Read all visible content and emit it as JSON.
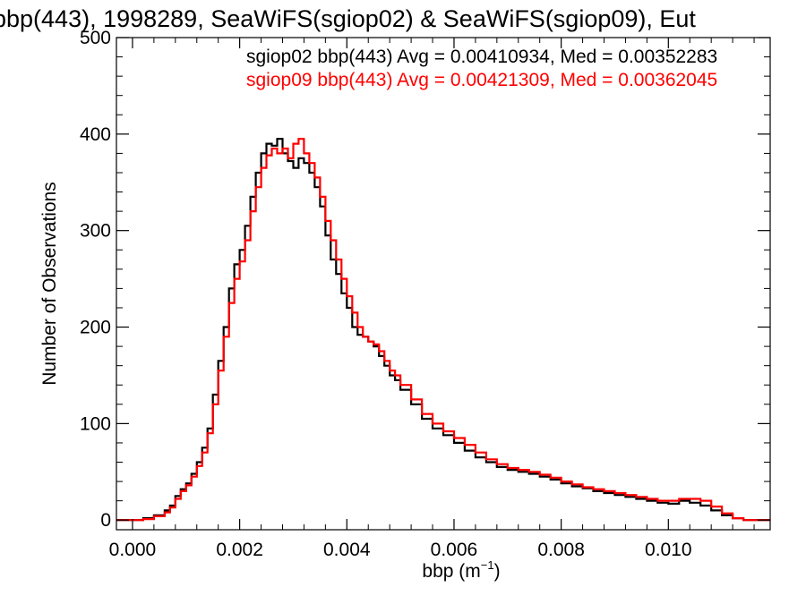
{
  "chart_data": {
    "type": "line",
    "title": "bbp(443), 1998289, SeaWiFS(sgiop02) & SeaWiFS(sgiop09), Eut",
    "xlabel_main": "bbp (m",
    "xlabel_sup": "−1",
    "xlabel_close": ")",
    "ylabel": "Number of Observations",
    "xlim": [
      -0.0003,
      0.0119
    ],
    "ylim": [
      -10,
      500
    ],
    "x_ticks": [
      0.0,
      0.002,
      0.004,
      0.006,
      0.008,
      0.01
    ],
    "x_tick_labels": [
      "0.000",
      "0.002",
      "0.004",
      "0.006",
      "0.008",
      "0.010"
    ],
    "y_ticks": [
      0,
      100,
      200,
      300,
      400,
      500
    ],
    "y_tick_labels": [
      "0",
      "100",
      "200",
      "300",
      "400",
      "500"
    ],
    "grid": false,
    "legend_position": "top-right",
    "series": [
      {
        "name": "sgiop02",
        "color": "#000000",
        "legend_text": "sgiop02 bbp(443) Avg = 0.00410934, Med = 0.00352283",
        "x": [
          -0.0003,
          0.0002,
          0.0004,
          0.0006,
          0.0007,
          0.0008,
          0.0009,
          0.001,
          0.0011,
          0.0012,
          0.0013,
          0.0014,
          0.0015,
          0.0016,
          0.0017,
          0.0018,
          0.0019,
          0.002,
          0.0021,
          0.0022,
          0.0023,
          0.0024,
          0.0025,
          0.0026,
          0.0027,
          0.0028,
          0.0029,
          0.003,
          0.0031,
          0.0032,
          0.0033,
          0.0034,
          0.0035,
          0.0036,
          0.0037,
          0.0038,
          0.0039,
          0.004,
          0.0041,
          0.0042,
          0.0043,
          0.0044,
          0.0045,
          0.0046,
          0.0047,
          0.0048,
          0.0049,
          0.005,
          0.0052,
          0.0054,
          0.0056,
          0.0058,
          0.006,
          0.0062,
          0.0064,
          0.0066,
          0.0068,
          0.007,
          0.0072,
          0.0074,
          0.0076,
          0.0078,
          0.008,
          0.0082,
          0.0084,
          0.0086,
          0.0088,
          0.009,
          0.0092,
          0.0094,
          0.0096,
          0.0098,
          0.01,
          0.0102,
          0.0104,
          0.0106,
          0.0108,
          0.011,
          0.0112,
          0.0114,
          0.0119
        ],
        "y": [
          0,
          2,
          5,
          10,
          15,
          25,
          32,
          38,
          48,
          60,
          75,
          95,
          130,
          165,
          200,
          240,
          265,
          280,
          305,
          335,
          360,
          380,
          390,
          388,
          395,
          380,
          372,
          365,
          375,
          370,
          360,
          345,
          325,
          295,
          270,
          255,
          235,
          220,
          200,
          192,
          190,
          185,
          180,
          170,
          160,
          150,
          145,
          135,
          120,
          105,
          95,
          88,
          80,
          72,
          65,
          60,
          55,
          52,
          50,
          48,
          45,
          42,
          38,
          35,
          33,
          30,
          28,
          26,
          24,
          22,
          20,
          18,
          17,
          20,
          18,
          15,
          10,
          5,
          2,
          0,
          0
        ]
      },
      {
        "name": "sgiop09",
        "color": "#ff0000",
        "legend_text": "sgiop09 bbp(443) Avg = 0.00421309, Med = 0.00362045",
        "x": [
          -0.0003,
          0.0002,
          0.0004,
          0.0006,
          0.0007,
          0.0008,
          0.0009,
          0.001,
          0.0011,
          0.0012,
          0.0013,
          0.0014,
          0.0015,
          0.0016,
          0.0017,
          0.0018,
          0.0019,
          0.002,
          0.0021,
          0.0022,
          0.0023,
          0.0024,
          0.0025,
          0.0026,
          0.0027,
          0.0028,
          0.0029,
          0.003,
          0.0031,
          0.0032,
          0.0033,
          0.0034,
          0.0035,
          0.0036,
          0.0037,
          0.0038,
          0.0039,
          0.004,
          0.0041,
          0.0042,
          0.0043,
          0.0044,
          0.0045,
          0.0046,
          0.0047,
          0.0048,
          0.0049,
          0.005,
          0.0052,
          0.0054,
          0.0056,
          0.0058,
          0.006,
          0.0062,
          0.0064,
          0.0066,
          0.0068,
          0.007,
          0.0072,
          0.0074,
          0.0076,
          0.0078,
          0.008,
          0.0082,
          0.0084,
          0.0086,
          0.0088,
          0.009,
          0.0092,
          0.0094,
          0.0096,
          0.0098,
          0.01,
          0.0102,
          0.0104,
          0.0106,
          0.0108,
          0.011,
          0.0112,
          0.0114,
          0.0119
        ],
        "y": [
          0,
          1,
          4,
          8,
          13,
          22,
          30,
          36,
          45,
          56,
          70,
          90,
          120,
          155,
          190,
          225,
          250,
          268,
          290,
          320,
          345,
          365,
          378,
          385,
          380,
          385,
          375,
          390,
          395,
          380,
          370,
          355,
          335,
          310,
          290,
          270,
          250,
          232,
          215,
          200,
          190,
          185,
          182,
          175,
          165,
          155,
          150,
          140,
          125,
          110,
          100,
          92,
          85,
          78,
          70,
          63,
          58,
          54,
          52,
          50,
          47,
          44,
          40,
          37,
          34,
          32,
          30,
          28,
          26,
          24,
          22,
          20,
          20,
          22,
          22,
          20,
          14,
          7,
          2,
          0,
          0
        ]
      }
    ]
  }
}
